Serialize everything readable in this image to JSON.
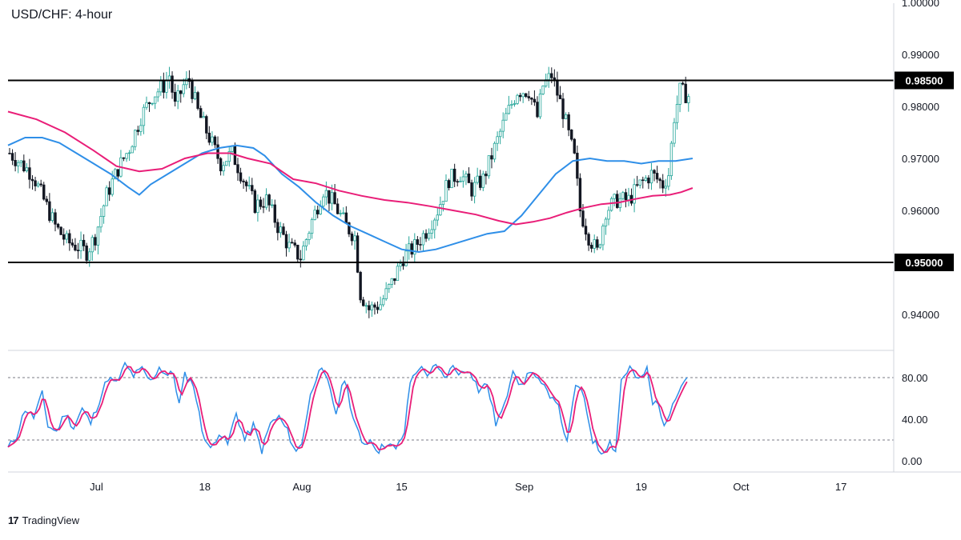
{
  "title": "USD/CHF: 4-hour",
  "brand": {
    "logo_text": "17",
    "name": "TradingView"
  },
  "colors": {
    "bull": "#26a69a",
    "bear": "#131722",
    "ma_fast": "#2f8fe8",
    "ma_slow": "#e91e78",
    "stoch_k": "#2f8fe8",
    "stoch_d": "#e91e78",
    "level": "#000000"
  },
  "chart_data": [
    {
      "type": "candlestick",
      "title": "USD/CHF: 4-hour",
      "x_ticks": [
        "Jul",
        "18",
        "Aug",
        "15",
        "Sep",
        "19",
        "Oct",
        "17"
      ],
      "y_ticks": [
        "1.00000",
        "0.99000",
        "0.98000",
        "0.97000",
        "0.96000",
        "0.94000"
      ],
      "ylim": [
        0.934,
        1.0025
      ],
      "levels": [
        {
          "value": 0.985,
          "label": "0.98500"
        },
        {
          "value": 0.95,
          "label": "0.95000"
        }
      ],
      "price_path": [
        [
          0,
          0.971
        ],
        [
          4,
          0.969
        ],
        [
          8,
          0.967
        ],
        [
          12,
          0.962
        ],
        [
          16,
          0.957
        ],
        [
          20,
          0.954
        ],
        [
          24,
          0.953
        ],
        [
          27,
          0.952
        ],
        [
          30,
          0.955
        ],
        [
          34,
          0.963
        ],
        [
          38,
          0.968
        ],
        [
          42,
          0.972
        ],
        [
          46,
          0.978
        ],
        [
          50,
          0.982
        ],
        [
          54,
          0.984
        ],
        [
          56,
          0.986
        ],
        [
          58,
          0.98
        ],
        [
          61,
          0.984
        ],
        [
          63,
          0.985
        ],
        [
          66,
          0.979
        ],
        [
          70,
          0.974
        ],
        [
          74,
          0.969
        ],
        [
          78,
          0.971
        ],
        [
          82,
          0.966
        ],
        [
          86,
          0.961
        ],
        [
          90,
          0.962
        ],
        [
          94,
          0.957
        ],
        [
          98,
          0.953
        ],
        [
          102,
          0.951
        ],
        [
          106,
          0.958
        ],
        [
          110,
          0.964
        ],
        [
          114,
          0.961
        ],
        [
          118,
          0.957
        ],
        [
          121,
          0.955
        ],
        [
          123,
          0.944
        ],
        [
          126,
          0.941
        ],
        [
          130,
          0.942
        ],
        [
          134,
          0.946
        ],
        [
          138,
          0.951
        ],
        [
          142,
          0.953
        ],
        [
          146,
          0.956
        ],
        [
          150,
          0.96
        ],
        [
          154,
          0.966
        ],
        [
          158,
          0.967
        ],
        [
          162,
          0.964
        ],
        [
          166,
          0.966
        ],
        [
          170,
          0.972
        ],
        [
          174,
          0.978
        ],
        [
          178,
          0.983
        ],
        [
          182,
          0.983
        ],
        [
          185,
          0.978
        ],
        [
          187,
          0.984
        ],
        [
          190,
          0.986
        ],
        [
          194,
          0.979
        ],
        [
          198,
          0.97
        ],
        [
          200,
          0.96
        ],
        [
          203,
          0.955
        ],
        [
          206,
          0.952
        ],
        [
          209,
          0.96
        ],
        [
          213,
          0.962
        ],
        [
          217,
          0.962
        ],
        [
          221,
          0.965
        ],
        [
          225,
          0.967
        ],
        [
          229,
          0.965
        ],
        [
          231,
          0.967
        ],
        [
          233,
          0.978
        ],
        [
          235,
          0.983
        ],
        [
          238,
          0.982
        ]
      ],
      "ma_fast": [
        [
          0,
          0.9725
        ],
        [
          6,
          0.974
        ],
        [
          12,
          0.974
        ],
        [
          18,
          0.973
        ],
        [
          24,
          0.971
        ],
        [
          30,
          0.969
        ],
        [
          36,
          0.967
        ],
        [
          42,
          0.9645
        ],
        [
          46,
          0.963
        ],
        [
          50,
          0.965
        ],
        [
          56,
          0.967
        ],
        [
          62,
          0.969
        ],
        [
          68,
          0.971
        ],
        [
          74,
          0.972
        ],
        [
          80,
          0.9725
        ],
        [
          86,
          0.972
        ],
        [
          90,
          0.9705
        ],
        [
          96,
          0.967
        ],
        [
          102,
          0.9645
        ],
        [
          108,
          0.9615
        ],
        [
          114,
          0.959
        ],
        [
          120,
          0.957
        ],
        [
          126,
          0.9555
        ],
        [
          132,
          0.954
        ],
        [
          138,
          0.9525
        ],
        [
          144,
          0.952
        ],
        [
          150,
          0.9525
        ],
        [
          156,
          0.9535
        ],
        [
          162,
          0.9545
        ],
        [
          168,
          0.9555
        ],
        [
          174,
          0.956
        ],
        [
          180,
          0.959
        ],
        [
          186,
          0.963
        ],
        [
          192,
          0.967
        ],
        [
          198,
          0.9695
        ],
        [
          204,
          0.97
        ],
        [
          210,
          0.9695
        ],
        [
          216,
          0.9695
        ],
        [
          222,
          0.969
        ],
        [
          228,
          0.9695
        ],
        [
          234,
          0.9695
        ],
        [
          240,
          0.97
        ]
      ],
      "ma_slow": [
        [
          0,
          0.979
        ],
        [
          10,
          0.9775
        ],
        [
          20,
          0.975
        ],
        [
          30,
          0.9715
        ],
        [
          38,
          0.9685
        ],
        [
          46,
          0.9675
        ],
        [
          54,
          0.968
        ],
        [
          62,
          0.97
        ],
        [
          70,
          0.971
        ],
        [
          78,
          0.971
        ],
        [
          84,
          0.97
        ],
        [
          92,
          0.969
        ],
        [
          100,
          0.966
        ],
        [
          108,
          0.9652
        ],
        [
          116,
          0.9638
        ],
        [
          124,
          0.9628
        ],
        [
          132,
          0.962
        ],
        [
          140,
          0.9615
        ],
        [
          148,
          0.9608
        ],
        [
          156,
          0.96
        ],
        [
          164,
          0.9592
        ],
        [
          172,
          0.958
        ],
        [
          178,
          0.9573
        ],
        [
          184,
          0.9578
        ],
        [
          190,
          0.9585
        ],
        [
          196,
          0.9596
        ],
        [
          202,
          0.9605
        ],
        [
          208,
          0.9612
        ],
        [
          214,
          0.9615
        ],
        [
          220,
          0.9622
        ],
        [
          226,
          0.9628
        ],
        [
          232,
          0.963
        ],
        [
          236,
          0.9635
        ],
        [
          240,
          0.9643
        ]
      ]
    },
    {
      "type": "line",
      "title": "",
      "y_ticks": [
        "80.00",
        "40.00",
        "0.00"
      ],
      "ylim": [
        -8,
        100
      ],
      "guides": [
        80,
        20
      ],
      "stoch_path": [
        [
          0,
          12
        ],
        [
          3,
          24
        ],
        [
          6,
          50
        ],
        [
          9,
          42
        ],
        [
          12,
          64
        ],
        [
          14,
          34
        ],
        [
          17,
          28
        ],
        [
          20,
          46
        ],
        [
          23,
          32
        ],
        [
          26,
          50
        ],
        [
          29,
          36
        ],
        [
          32,
          58
        ],
        [
          35,
          80
        ],
        [
          38,
          74
        ],
        [
          41,
          92
        ],
        [
          44,
          82
        ],
        [
          47,
          88
        ],
        [
          50,
          76
        ],
        [
          53,
          90
        ],
        [
          56,
          82
        ],
        [
          58,
          84
        ],
        [
          60,
          54
        ],
        [
          62,
          82
        ],
        [
          65,
          74
        ],
        [
          68,
          30
        ],
        [
          71,
          10
        ],
        [
          74,
          28
        ],
        [
          77,
          16
        ],
        [
          80,
          46
        ],
        [
          83,
          20
        ],
        [
          86,
          34
        ],
        [
          89,
          10
        ],
        [
          92,
          36
        ],
        [
          95,
          42
        ],
        [
          98,
          28
        ],
        [
          101,
          8
        ],
        [
          103,
          18
        ],
        [
          106,
          62
        ],
        [
          109,
          90
        ],
        [
          112,
          76
        ],
        [
          115,
          46
        ],
        [
          118,
          80
        ],
        [
          121,
          42
        ],
        [
          124,
          16
        ],
        [
          127,
          20
        ],
        [
          130,
          10
        ],
        [
          133,
          18
        ],
        [
          136,
          10
        ],
        [
          139,
          28
        ],
        [
          141,
          76
        ],
        [
          144,
          90
        ],
        [
          147,
          84
        ],
        [
          150,
          90
        ],
        [
          153,
          80
        ],
        [
          156,
          90
        ],
        [
          159,
          84
        ],
        [
          162,
          88
        ],
        [
          165,
          68
        ],
        [
          168,
          74
        ],
        [
          171,
          36
        ],
        [
          174,
          52
        ],
        [
          177,
          90
        ],
        [
          180,
          70
        ],
        [
          183,
          88
        ],
        [
          186,
          76
        ],
        [
          189,
          66
        ],
        [
          192,
          60
        ],
        [
          194,
          40
        ],
        [
          196,
          16
        ],
        [
          199,
          74
        ],
        [
          202,
          60
        ],
        [
          205,
          20
        ],
        [
          208,
          8
        ],
        [
          211,
          18
        ],
        [
          213,
          10
        ],
        [
          215,
          78
        ],
        [
          218,
          90
        ],
        [
          221,
          76
        ],
        [
          224,
          88
        ],
        [
          226,
          54
        ],
        [
          228,
          58
        ],
        [
          230,
          30
        ],
        [
          233,
          58
        ],
        [
          236,
          72
        ],
        [
          238,
          82
        ]
      ]
    }
  ]
}
